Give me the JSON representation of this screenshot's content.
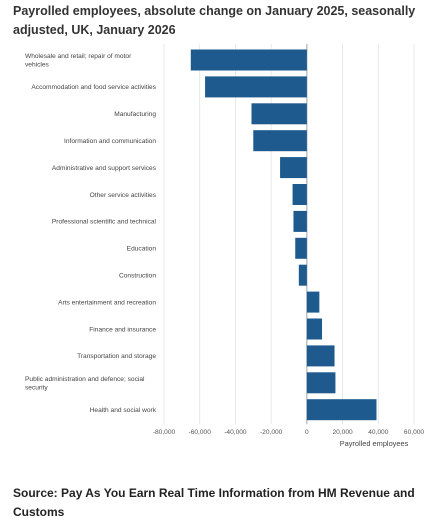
{
  "title": "Payrolled employees, absolute change on January 2025, seasonally adjusted, UK, January 2026",
  "source": "Source: Pay As You Earn Real Time Information from HM Revenue and Customs",
  "colors": {
    "bar": "#1f5a8f",
    "grid": "#dfe4ea",
    "zero_line": "#9aa3ad"
  },
  "chart_data": {
    "type": "bar",
    "orientation": "horizontal",
    "title": "Payrolled employees, absolute change on January 2025, seasonally adjusted, UK, January 2026",
    "xlabel": "Payrolled employees",
    "ylabel": "",
    "xlim": [
      -80000,
      60000
    ],
    "x_ticks": [
      -80000,
      -60000,
      -40000,
      -20000,
      0,
      20000,
      40000,
      60000
    ],
    "x_tick_labels": [
      "-80,000",
      "-60,000",
      "-40,000",
      "-20,000",
      "0",
      "20,000",
      "40,000",
      "60,000"
    ],
    "grid": true,
    "categories": [
      [
        "Wholesale and retail; repair of motor",
        "vehicles"
      ],
      [
        "Accommodation and food service activities"
      ],
      [
        "Manufacturing"
      ],
      [
        "Information and communication"
      ],
      [
        "Administrative and support services"
      ],
      [
        "Other service activities"
      ],
      [
        "Professional scientific and technical"
      ],
      [
        "Education"
      ],
      [
        "Construction"
      ],
      [
        "Arts entertainment and recreation"
      ],
      [
        "Finance and insurance"
      ],
      [
        "Transportation and storage"
      ],
      [
        "Public administration and defence; social",
        "security"
      ],
      [
        "Health and social work"
      ]
    ],
    "values": [
      -65000,
      -57000,
      -31000,
      -30000,
      -15000,
      -8000,
      -7500,
      -6500,
      -4500,
      7000,
      8500,
      15500,
      16000,
      39000
    ]
  }
}
